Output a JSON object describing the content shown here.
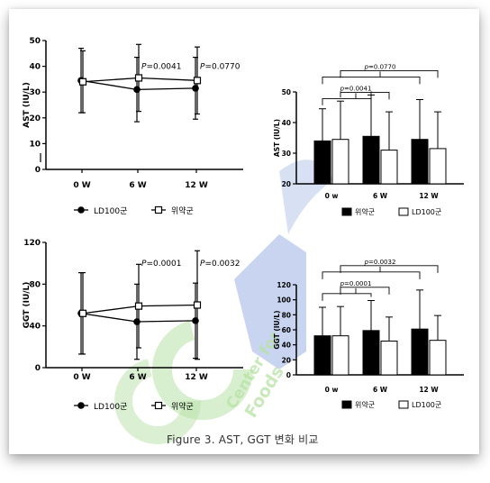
{
  "caption": "Figure 3. AST, GGT 변화 비교",
  "watermark": {
    "text_lines": [
      "Center for",
      "Foods"
    ],
    "color": "#b7e2a5",
    "accent": "#9db3e3"
  },
  "chart_data": [
    {
      "id": "ast_line",
      "type": "line",
      "categories": [
        "0 W",
        "6 W",
        "12 W"
      ],
      "ylabel": "AST (IU/L)",
      "ylim": [
        0,
        50
      ],
      "yticks": [
        0,
        10,
        20,
        30,
        40,
        50
      ],
      "series": [
        {
          "name": "LD100군",
          "marker": "filled-circle",
          "values": [
            34.5,
            31,
            31.5
          ],
          "err": [
            12.5,
            12.5,
            12
          ]
        },
        {
          "name": "위약군",
          "marker": "open-square",
          "values": [
            34,
            35.5,
            34.5
          ],
          "err": [
            12,
            13,
            13
          ]
        }
      ],
      "annotations": [
        {
          "text": "P=0.0041",
          "category": "6 W",
          "y": 40
        },
        {
          "text": "P=0.0770",
          "category": "12 W",
          "y": 40
        }
      ]
    },
    {
      "id": "ast_bar",
      "type": "bar",
      "categories": [
        "0 w",
        "6 W",
        "12 W"
      ],
      "ylabel": "AST (IU/L)",
      "ylim": [
        20,
        50
      ],
      "yticks": [
        20,
        30,
        40,
        50
      ],
      "series": [
        {
          "name": "위약군",
          "color": "#000000",
          "values": [
            34,
            35.5,
            34.5
          ],
          "err": [
            10.5,
            13.5,
            13
          ]
        },
        {
          "name": "LD100군",
          "color": "#ffffff",
          "values": [
            34.5,
            31,
            31.5
          ],
          "err": [
            12.5,
            12.5,
            12
          ]
        }
      ],
      "brackets": [
        {
          "text": "p=0.0041",
          "inner": true
        },
        {
          "text": "p=0.0770",
          "inner": false
        }
      ]
    },
    {
      "id": "ggt_line",
      "type": "line",
      "categories": [
        "0 W",
        "6 W",
        "12 W"
      ],
      "ylabel": "GGT (IU/L)",
      "ylim": [
        0,
        120
      ],
      "yticks": [
        0,
        40,
        80,
        120
      ],
      "series": [
        {
          "name": "LD100군",
          "marker": "filled-circle",
          "values": [
            52,
            44,
            45
          ],
          "err": [
            39,
            36,
            36
          ]
        },
        {
          "name": "위약군",
          "marker": "open-square",
          "values": [
            52,
            59,
            60
          ],
          "err": [
            39,
            40,
            52
          ]
        }
      ],
      "annotations": [
        {
          "text": "P=0.0001",
          "category": "6 W",
          "y": 100
        },
        {
          "text": "P=0.0032",
          "category": "12 W",
          "y": 100
        }
      ]
    },
    {
      "id": "ggt_bar",
      "type": "bar",
      "categories": [
        "0 w",
        "6 W",
        "12 W"
      ],
      "ylabel": "GGT (IU/L)",
      "ylim": [
        0,
        120
      ],
      "yticks": [
        0,
        20,
        40,
        60,
        80,
        100,
        120
      ],
      "series": [
        {
          "name": "위약군",
          "color": "#000000",
          "values": [
            52,
            59,
            61
          ],
          "err": [
            38,
            40,
            52
          ]
        },
        {
          "name": "LD100군",
          "color": "#ffffff",
          "values": [
            52,
            45,
            46
          ],
          "err": [
            39,
            32,
            33
          ]
        }
      ],
      "brackets": [
        {
          "text": "p=0.0001",
          "inner": true
        },
        {
          "text": "p=0.0032",
          "inner": false
        }
      ]
    }
  ]
}
